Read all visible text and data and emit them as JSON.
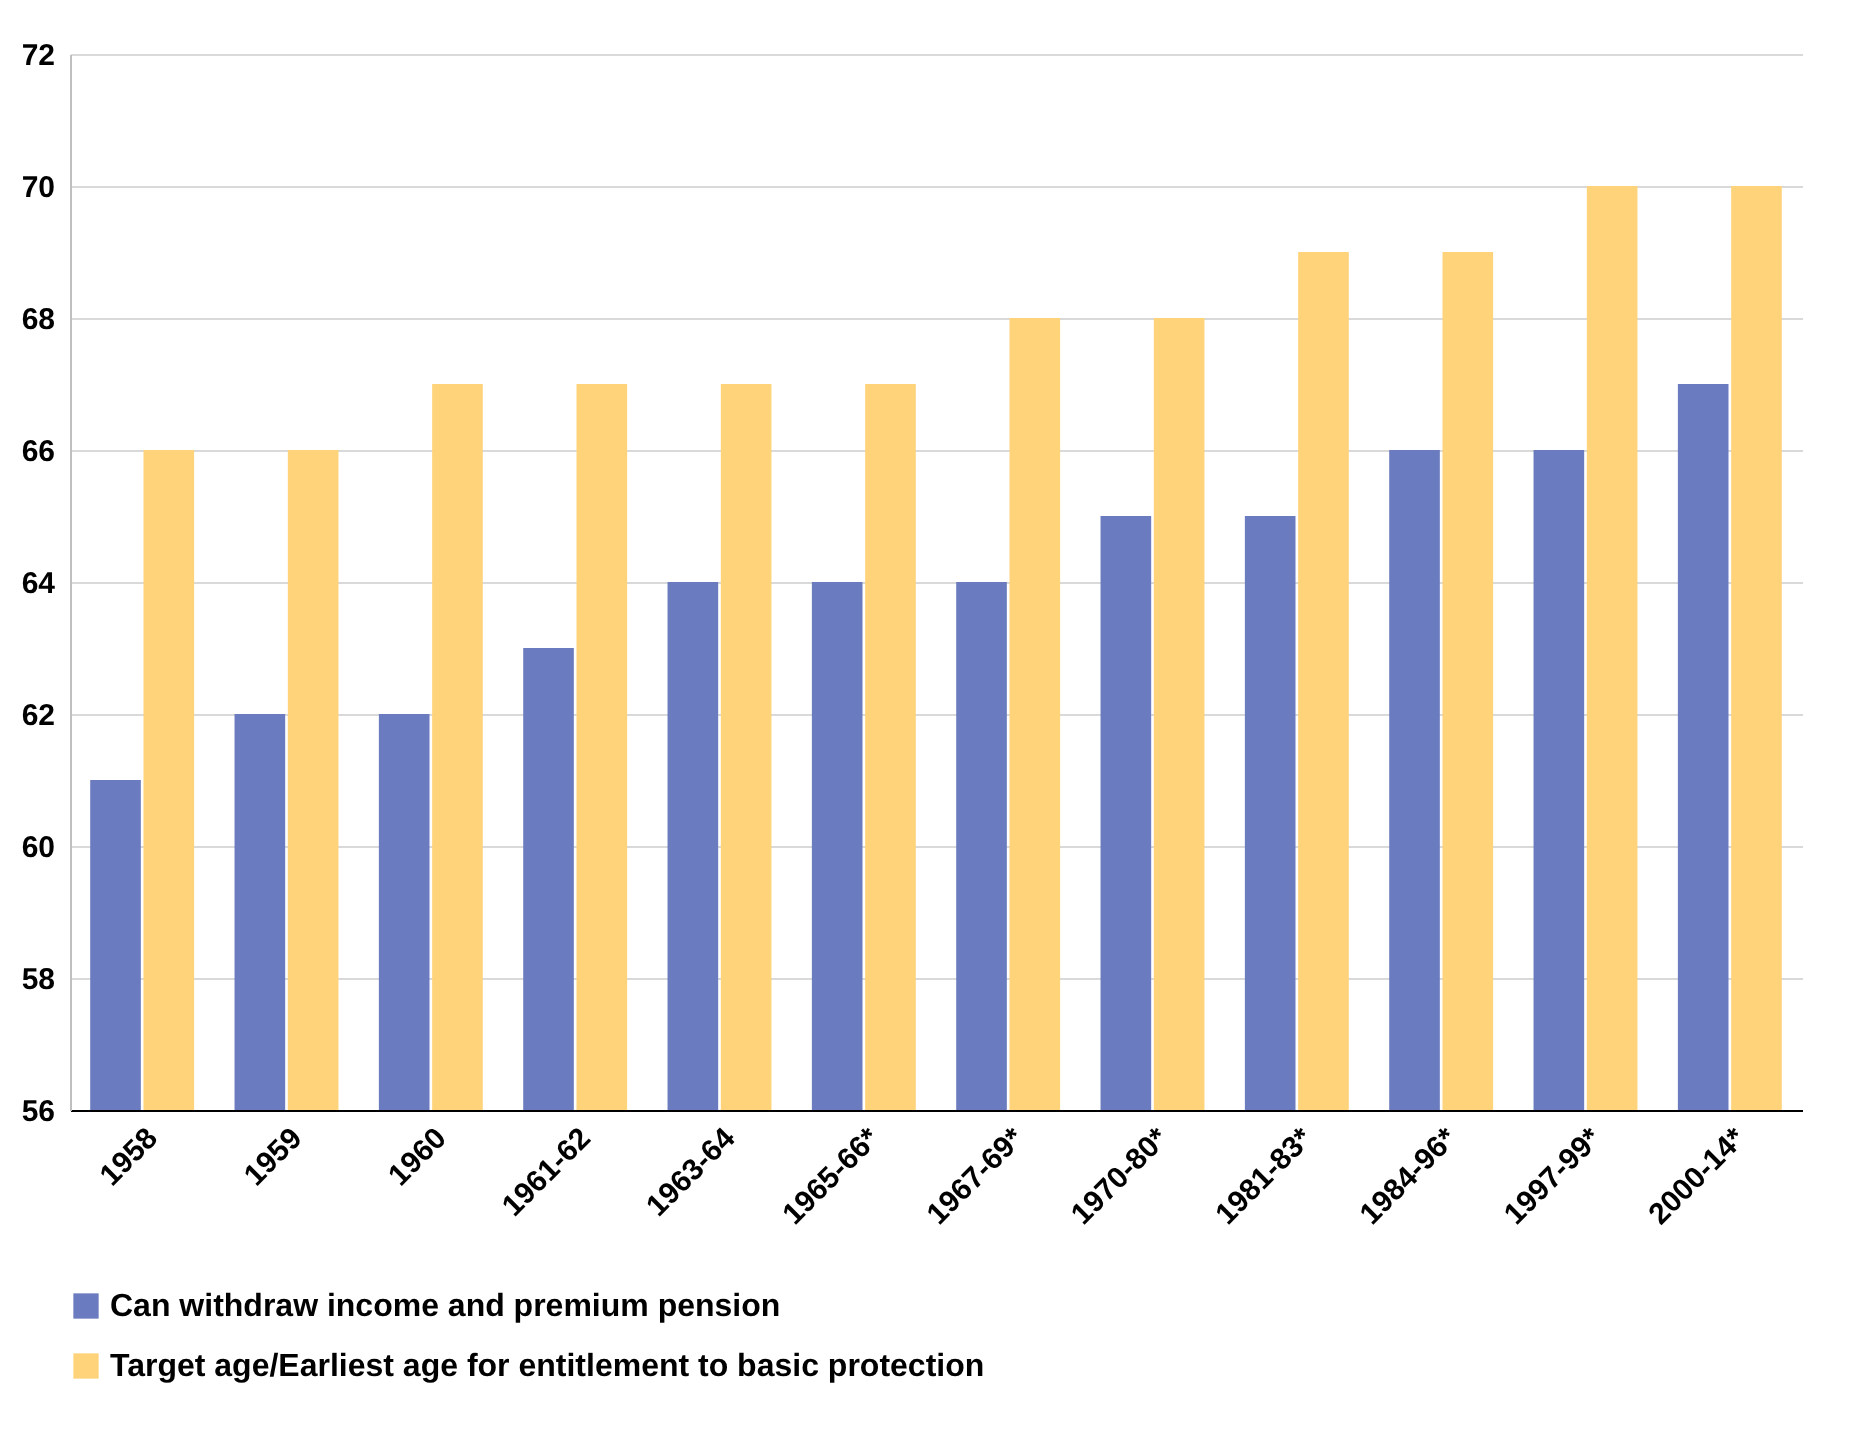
{
  "chart_data": {
    "type": "bar",
    "categories": [
      "1958",
      "1959",
      "1960",
      "1961-62",
      "1963-64",
      "1965-66*",
      "1967-69*",
      "1970-80*",
      "1981-83*",
      "1984-96*",
      "1997-99*",
      "2000-14*"
    ],
    "series": [
      {
        "name": "Can withdraw income and premium pension",
        "color": "#6a7bbf",
        "values": [
          61,
          62,
          62,
          63,
          64,
          64,
          64,
          65,
          65,
          66,
          66,
          67
        ]
      },
      {
        "name": "Target age/Earliest age for entitlement to basic protection",
        "color": "#ffd37a",
        "values": [
          66,
          66,
          67,
          67,
          67,
          67,
          68,
          68,
          69,
          69,
          70,
          70
        ]
      }
    ],
    "ylim": [
      56,
      72
    ],
    "yticks": [
      56,
      58,
      60,
      62,
      64,
      66,
      68,
      70,
      72
    ],
    "grid": "y",
    "legend": "bottom"
  }
}
